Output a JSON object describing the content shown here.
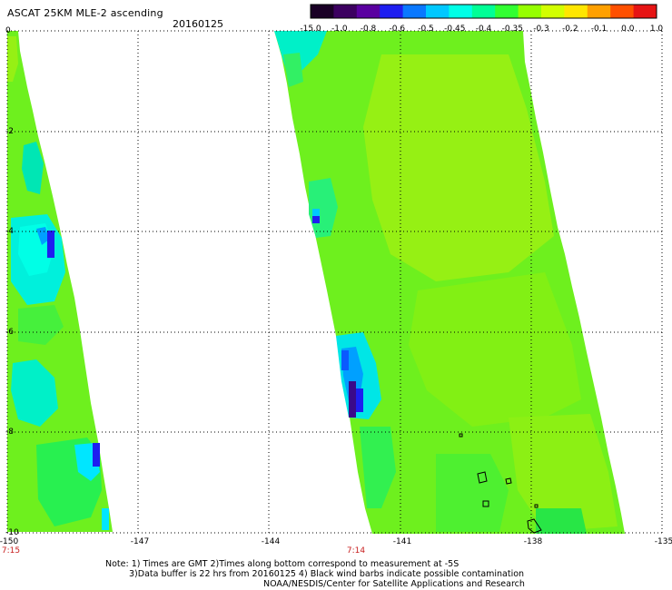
{
  "header": {
    "title": "ASCAT 25KM MLE-2 ascending",
    "date": "20160125"
  },
  "colorbar": {
    "labels": [
      "-15.0",
      "-1.0",
      "-0.8",
      "-0.6",
      "-0.5",
      "-0.45",
      "-0.4",
      "-0.35",
      "-0.3",
      "-0.2",
      "-0.1",
      "0.0",
      "1.0"
    ],
    "colors": [
      "#1a0026",
      "#3c0060",
      "#5a00a0",
      "#1e1ef0",
      "#0a78ff",
      "#00c8ff",
      "#00ffe6",
      "#00ff96",
      "#32ff32",
      "#96ff00",
      "#d2ff00",
      "#ffe600",
      "#ffa000",
      "#ff5000",
      "#e61414"
    ]
  },
  "axes": {
    "lon_ticks": [
      "-150",
      "-147",
      "-144",
      "-141",
      "-138",
      "-135"
    ],
    "lat_ticks": [
      "0",
      "-2",
      "-4",
      "-6",
      "-8",
      "-10"
    ],
    "time_labels": [
      {
        "text": "7:15",
        "lon": "-150"
      },
      {
        "text": "7:14",
        "lon": "-142.5"
      }
    ]
  },
  "notes": {
    "line1": "Note: 1) Times are GMT 2)Times along bottom correspond to measurement at -5S",
    "line2": "3)Data buffer is 22 hrs from 20160125 4) Black wind barbs indicate possible contamination",
    "line3": "NOAA/NESDIS/Center for Satellite Applications and Research"
  },
  "map_colors": {
    "swath_base": "#6ef01e",
    "swath_yellow": "#a6f014",
    "anomaly_cyan": "#00e6d2",
    "anomaly_blue": "#0a5aff",
    "anomaly_dark": "#2a0a6a",
    "time_label": "#c81e1e"
  }
}
